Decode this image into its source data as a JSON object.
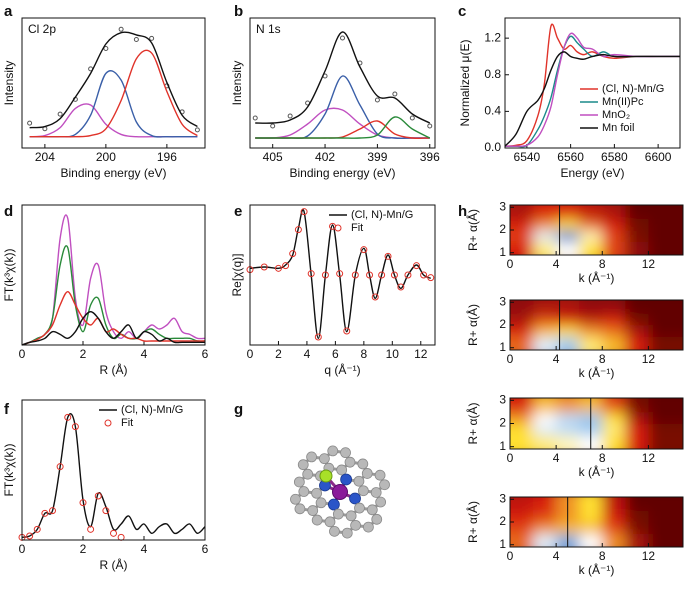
{
  "chart_data": [
    {
      "type": "line",
      "panel": "a",
      "annotation": "Cl 2p",
      "xlabel": "Binding energy (eV)",
      "ylabel": "Intensity",
      "x": [
        205,
        204,
        203,
        202,
        201,
        200,
        199,
        198,
        197,
        196,
        195,
        194
      ],
      "xlim": [
        205.5,
        193.5
      ],
      "xticks": [
        204,
        200,
        196
      ],
      "ylim": [
        -0.1,
        1.05
      ],
      "series": [
        {
          "color": "#555555",
          "marker": "circle",
          "values": [
            0.12,
            0.07,
            0.2,
            0.33,
            0.6,
            0.78,
            0.95,
            0.86,
            0.87,
            0.45,
            0.22,
            0.06
          ]
        },
        {
          "color": "#c04fc0",
          "values": [
            0,
            0.01,
            0.08,
            0.25,
            0.28,
            0.11,
            0.02,
            0,
            0,
            0,
            0,
            0
          ]
        },
        {
          "color": "#3a5fa8",
          "values": [
            0,
            0,
            0,
            0.02,
            0.19,
            0.56,
            0.5,
            0.13,
            0.01,
            0,
            0,
            0
          ]
        },
        {
          "color": "#e0332a",
          "values": [
            0,
            0,
            0,
            0,
            0.01,
            0.07,
            0.32,
            0.69,
            0.74,
            0.4,
            0.11,
            0.01
          ]
        },
        {
          "color": "#111111",
          "values": [
            0.08,
            0.09,
            0.16,
            0.35,
            0.56,
            0.82,
            0.92,
            0.9,
            0.83,
            0.48,
            0.19,
            0.09
          ]
        }
      ]
    },
    {
      "type": "line",
      "panel": "b",
      "annotation": "N 1s",
      "xlabel": "Binding energy (eV)",
      "ylabel": "Intensity",
      "x": [
        406,
        405,
        404,
        403,
        402,
        401,
        400,
        399,
        398,
        397,
        396
      ],
      "xlim": [
        406.3,
        395.7
      ],
      "xticks": [
        405,
        402,
        399,
        396
      ],
      "ylim": [
        -0.1,
        1.2
      ],
      "series": [
        {
          "color": "#555555",
          "marker": "circle",
          "values": [
            0.2,
            0.12,
            0.22,
            0.35,
            0.62,
            1.0,
            0.75,
            0.38,
            0.44,
            0.2,
            0.12
          ]
        },
        {
          "color": "#c04fc0",
          "values": [
            0,
            0,
            0.03,
            0.14,
            0.28,
            0.28,
            0.14,
            0.03,
            0,
            0,
            0
          ]
        },
        {
          "color": "#3a5fa8",
          "values": [
            0,
            0,
            0,
            0.02,
            0.24,
            0.62,
            0.33,
            0.04,
            0,
            0,
            0
          ]
        },
        {
          "color": "#e0332a",
          "values": [
            0,
            0,
            0,
            0,
            0,
            0.01,
            0.09,
            0.17,
            0.04,
            0,
            0
          ]
        },
        {
          "color": "#2a8a3a",
          "values": [
            0,
            0,
            0,
            0,
            0,
            0,
            0,
            0.03,
            0.21,
            0.09,
            0
          ]
        },
        {
          "color": "#111111",
          "values": [
            0.15,
            0.15,
            0.18,
            0.31,
            0.67,
            1.06,
            0.71,
            0.42,
            0.4,
            0.24,
            0.15
          ]
        }
      ]
    },
    {
      "type": "line",
      "panel": "c",
      "xlabel": "Energy (eV)",
      "ylabel": "Normalized μ(E)",
      "x": [
        6530,
        6535,
        6540,
        6545,
        6548,
        6551,
        6554,
        6557,
        6560,
        6563,
        6566,
        6570,
        6575,
        6580,
        6590,
        6600,
        6610
      ],
      "xlim": [
        6530,
        6610
      ],
      "xticks": [
        6540,
        6560,
        6580,
        6600
      ],
      "ylim": [
        0,
        1.42
      ],
      "yticks": [
        {
          "value": 0,
          "label": "0.0"
        },
        0.4,
        0.8,
        1.2
      ],
      "legend": "lower right",
      "series": [
        {
          "name": "(Cl, N)-Mn/G",
          "color": "#e0332a",
          "values": [
            0.02,
            0.03,
            0.08,
            0.35,
            0.7,
            1.33,
            1.2,
            1.08,
            1.12,
            1.05,
            1.02,
            1.05,
            1.0,
            0.98,
            1.0,
            1.0,
            1.0
          ]
        },
        {
          "name": "Mn(II)Pc",
          "color": "#1a8a8a",
          "values": [
            0.02,
            0.02,
            0.03,
            0.2,
            0.35,
            0.55,
            0.85,
            1.1,
            1.22,
            1.15,
            1.08,
            1.0,
            1.05,
            1.0,
            1.0,
            1.0,
            1.0
          ]
        },
        {
          "name": "MnO₂",
          "color": "#c04fc0",
          "values": [
            0.02,
            0.02,
            0.03,
            0.12,
            0.25,
            0.45,
            0.8,
            1.1,
            1.25,
            1.2,
            1.1,
            1.08,
            1.0,
            1.02,
            1.0,
            1.0,
            1.0
          ]
        },
        {
          "name": "Mn foil",
          "color": "#111111",
          "values": [
            0.02,
            0.15,
            0.4,
            0.52,
            0.65,
            0.85,
            1.0,
            1.05,
            1.0,
            0.98,
            0.97,
            1.0,
            1.02,
            1.0,
            1.0,
            1.0,
            1.0
          ]
        }
      ]
    },
    {
      "type": "line",
      "panel": "d",
      "xlabel": "R (Å)",
      "ylabel": "FT(k³χ(k))",
      "x": [
        0,
        0.25,
        0.5,
        0.75,
        1,
        1.25,
        1.5,
        1.75,
        2,
        2.25,
        2.5,
        2.75,
        3,
        3.25,
        3.5,
        3.75,
        4,
        4.25,
        4.5,
        4.75,
        5,
        5.25,
        5.5,
        5.75,
        6
      ],
      "xlim": [
        0,
        6
      ],
      "xticks": [
        0,
        2,
        4,
        6
      ],
      "ylim": [
        0,
        1.05
      ],
      "series": [
        {
          "color": "#c04fc0",
          "values": [
            0,
            0.02,
            0.05,
            0.08,
            0.2,
            0.8,
            0.95,
            0.35,
            0.15,
            0.5,
            0.6,
            0.25,
            0.1,
            0.05,
            0.1,
            0.05,
            0.1,
            0.15,
            0.12,
            0.15,
            0.2,
            0.1,
            0.08,
            0.05,
            0.05
          ]
        },
        {
          "color": "#2a8a3a",
          "values": [
            0,
            0.02,
            0.05,
            0.08,
            0.2,
            0.6,
            0.73,
            0.3,
            0.1,
            0.3,
            0.35,
            0.15,
            0.05,
            0.08,
            0.05,
            0.05,
            0.1,
            0.12,
            0.08,
            0.05,
            0.05,
            0.05,
            0.05,
            0.03,
            0.03
          ]
        },
        {
          "color": "#e0332a",
          "values": [
            0,
            0.02,
            0.04,
            0.08,
            0.15,
            0.3,
            0.4,
            0.3,
            0.2,
            0.15,
            0.2,
            0.1,
            0.12,
            0.08,
            0.05,
            0.05,
            0.03,
            0.03,
            0.03,
            0.03,
            0.03,
            0.03,
            0.03,
            0.03,
            0.03
          ]
        },
        {
          "color": "#111111",
          "values": [
            0,
            0.02,
            0.03,
            0.05,
            0.1,
            0.08,
            0.05,
            0.1,
            0.2,
            0.25,
            0.2,
            0.1,
            0.05,
            0.1,
            0.15,
            0.05,
            0.1,
            0.08,
            0.03,
            0.05,
            0.02,
            0.02,
            0.02,
            0.02,
            0.02
          ]
        }
      ]
    },
    {
      "type": "line",
      "panel": "e",
      "xlabel": "q (Å⁻¹)",
      "ylabel": "Re[χ(q)]",
      "x": [
        0,
        1,
        2,
        2.5,
        3,
        3.4,
        3.8,
        4.3,
        4.8,
        5.3,
        5.8,
        6.3,
        6.8,
        7.4,
        8,
        8.4,
        8.8,
        9.25,
        9.7,
        10.15,
        10.6,
        11.1,
        11.7,
        12.2,
        12.7
      ],
      "xlim": [
        0,
        13
      ],
      "xticks": [
        0,
        2,
        4,
        6,
        8,
        10,
        12
      ],
      "ylim": [
        -1.05,
        1.05
      ],
      "legend": "upper right",
      "series": [
        {
          "name": "(Cl, N)-Mn/G",
          "color": "#111111",
          "values": [
            0.1,
            0.12,
            0.1,
            0.15,
            0.3,
            0.7,
            0.95,
            0,
            -0.95,
            0,
            0.75,
            0,
            -0.85,
            0,
            0.4,
            0,
            -0.35,
            0,
            0.3,
            0,
            -0.2,
            0,
            0.15,
            0,
            -0.05
          ]
        },
        {
          "name": "Fit",
          "color": "#e0332a",
          "marker": "circle",
          "values": [
            0.08,
            0.12,
            0.1,
            0.14,
            0.32,
            0.68,
            0.95,
            0.02,
            -0.93,
            0,
            0.73,
            0.02,
            -0.84,
            0,
            0.38,
            0,
            -0.33,
            0,
            0.28,
            0,
            -0.18,
            0,
            0.14,
            0,
            -0.04
          ]
        }
      ]
    },
    {
      "type": "line",
      "panel": "f",
      "xlabel": "R (Å)",
      "ylabel": "FT(k³χ(k))",
      "x": [
        0,
        0.25,
        0.5,
        0.75,
        1,
        1.25,
        1.5,
        1.75,
        2,
        2.25,
        2.5,
        2.75,
        3,
        3.25,
        3.5,
        3.75,
        4,
        4.25,
        4.5,
        4.75,
        5,
        5.25,
        5.5,
        5.75,
        6
      ],
      "xlim": [
        0,
        6
      ],
      "xticks": [
        0,
        2,
        4,
        6
      ],
      "ylim": [
        0,
        1.05
      ],
      "legend": "upper right",
      "series": [
        {
          "name": "(Cl, N)-Mn/G",
          "color": "#111111",
          "values": [
            0.02,
            0.03,
            0.08,
            0.2,
            0.22,
            0.55,
            0.92,
            0.85,
            0.3,
            0.1,
            0.35,
            0.25,
            0.08,
            0.12,
            0.18,
            0.08,
            0.12,
            0.05,
            0.1,
            0.12,
            0.05,
            0.08,
            0.12,
            0.05,
            0.1
          ]
        },
        {
          "name": "Fit",
          "color": "#e0332a",
          "marker": "circle",
          "values": [
            0.02,
            0.03,
            0.08,
            0.2,
            0.22,
            0.55,
            0.92,
            0.85,
            0.28,
            0.08,
            0.33,
            0.22,
            0.05,
            0.02,
            null,
            null,
            null,
            null,
            null,
            null,
            null,
            null,
            null,
            null,
            null
          ]
        }
      ]
    },
    {
      "type": "heatmap",
      "panel": "h",
      "xlabel": "k (Å⁻¹)",
      "ylabel": "R+ α(Å)",
      "k": [
        1,
        3,
        5,
        7,
        9,
        11,
        13
      ],
      "r": [
        1.25,
        1.75,
        2.25,
        2.75
      ],
      "xlim": [
        0,
        15
      ],
      "xticks": [
        0,
        4,
        8,
        12
      ],
      "ylim": [
        0.9,
        3.1
      ],
      "yticks": [
        1,
        2,
        3
      ],
      "vline": 4.3,
      "z": [
        [
          0.3,
          0.6,
          0.7,
          0.55,
          0.35,
          0.15,
          0.05
        ],
        [
          0.35,
          0.75,
          0.95,
          0.65,
          0.35,
          0.1,
          0.05
        ],
        [
          0.3,
          0.45,
          0.55,
          0.4,
          0.3,
          0.1,
          0.05
        ],
        [
          0.2,
          0.3,
          0.3,
          0.25,
          0.2,
          0.05,
          0.05
        ]
      ]
    },
    {
      "type": "heatmap",
      "xlabel": "k (Å⁻¹)",
      "ylabel": "R+ α(Å)",
      "k": [
        1,
        3,
        5,
        7,
        9,
        11,
        13
      ],
      "r": [
        1.25,
        1.75,
        2.25,
        2.75
      ],
      "xlim": [
        0,
        15
      ],
      "xticks": [
        0,
        4,
        8,
        12
      ],
      "ylim": [
        0.9,
        3.1
      ],
      "yticks": [
        1,
        2,
        3
      ],
      "vline": 4.3,
      "z": [
        [
          0.4,
          0.75,
          0.85,
          0.6,
          0.5,
          0.3,
          0.1
        ],
        [
          0.3,
          0.5,
          0.55,
          0.45,
          0.4,
          0.2,
          0.05
        ],
        [
          0.2,
          0.35,
          0.3,
          0.25,
          0.3,
          0.1,
          0.05
        ],
        [
          0.15,
          0.2,
          0.2,
          0.15,
          0.15,
          0.05,
          0.05
        ]
      ]
    },
    {
      "type": "heatmap",
      "xlabel": "k (Å⁻¹)",
      "ylabel": "R+ α(Å)",
      "k": [
        1,
        3,
        5,
        7,
        9,
        11,
        13
      ],
      "r": [
        1.25,
        1.75,
        2.25,
        2.75
      ],
      "xlim": [
        0,
        15
      ],
      "xticks": [
        0,
        4,
        8,
        12
      ],
      "ylim": [
        0.9,
        3.1
      ],
      "yticks": [
        1,
        2,
        3
      ],
      "vline": 7,
      "z": [
        [
          0.55,
          0.6,
          0.65,
          0.7,
          0.55,
          0.3,
          0.1
        ],
        [
          0.55,
          0.75,
          0.8,
          0.85,
          0.6,
          0.3,
          0.1
        ],
        [
          0.45,
          0.7,
          0.8,
          0.85,
          0.55,
          0.2,
          0.05
        ],
        [
          0.3,
          0.5,
          0.45,
          0.5,
          0.35,
          0.1,
          0.05
        ]
      ]
    },
    {
      "type": "heatmap",
      "xlabel": "k (Å⁻¹)",
      "ylabel": "R+ α(Å)",
      "k": [
        1,
        3,
        5,
        7,
        9,
        11,
        13
      ],
      "r": [
        1.25,
        1.75,
        2.25,
        2.75
      ],
      "xlim": [
        0,
        15
      ],
      "xticks": [
        0,
        4,
        8,
        12
      ],
      "ylim": [
        0.9,
        3.1
      ],
      "yticks": [
        1,
        2,
        3
      ],
      "vline": 5,
      "z": [
        [
          0.4,
          0.75,
          0.9,
          0.7,
          0.45,
          0.2,
          0.05
        ],
        [
          0.35,
          0.45,
          0.5,
          0.5,
          0.35,
          0.1,
          0.05
        ],
        [
          0.3,
          0.35,
          0.45,
          0.55,
          0.3,
          0.1,
          0.05
        ],
        [
          0.25,
          0.3,
          0.45,
          0.55,
          0.25,
          0.05,
          0.05
        ]
      ]
    }
  ],
  "structure_panel": {
    "label": "g"
  }
}
